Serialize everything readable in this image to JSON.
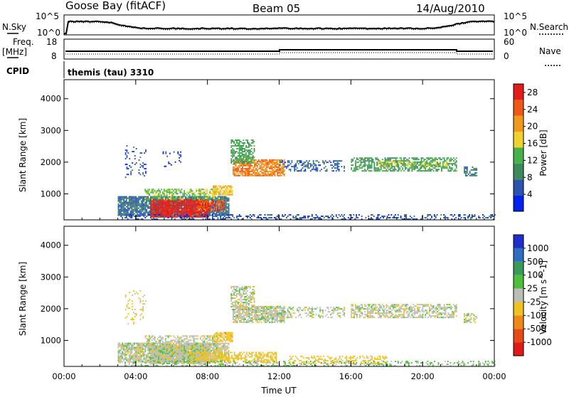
{
  "header": {
    "station": "Goose Bay (fitACF)",
    "beam": "Beam 05",
    "date": "14/Aug/2010"
  },
  "noise_panel": {
    "left_label": "N.Sky",
    "left_ticks": [
      "10^5",
      "10^0"
    ],
    "right_ticks": [
      "10^5",
      "10^0"
    ],
    "right_label": "N.Search"
  },
  "freq_panel": {
    "left_label_1": "Freq.",
    "left_label_2": "[MHz]",
    "left_ticks": [
      "18",
      "8"
    ],
    "right_ticks": [
      "60",
      "0"
    ],
    "right_label": "Nave"
  },
  "cpid": {
    "label": "CPID",
    "program": "themis (tau) 3310"
  },
  "chart_data": [
    {
      "type": "heatmap",
      "panel": "power",
      "ylabel": "Slant Range [km]",
      "xlabel": "",
      "x_range_hours": [
        0,
        24
      ],
      "ylim": [
        180,
        4600
      ],
      "yticks": [
        "4000",
        "3000",
        "2000",
        "1000"
      ],
      "colorbar_label": "Power [dB]",
      "colorbar_ticks": [
        "28",
        "24",
        "20",
        "16",
        "12",
        "8",
        "4"
      ],
      "colorbar_range": [
        0,
        30
      ],
      "colors": [
        "#0022ee",
        "#2a54b0",
        "#3f8a5a",
        "#46b34a",
        "#f0d22c",
        "#ef9a1a",
        "#ee5a15",
        "#e21d17"
      ],
      "regions": [
        {
          "t0": 3.0,
          "t1": 9.2,
          "r0": 300,
          "r1": 900,
          "value": 7,
          "density": 0.85
        },
        {
          "t0": 4.8,
          "t1": 8.1,
          "r0": 250,
          "r1": 800,
          "value": 29,
          "density": 0.95
        },
        {
          "t0": 7.4,
          "t1": 8.9,
          "r0": 450,
          "r1": 800,
          "value": 25,
          "density": 0.8
        },
        {
          "t0": 4.5,
          "t1": 8.6,
          "r0": 800,
          "r1": 1150,
          "value": 14,
          "density": 0.6
        },
        {
          "t0": 8.3,
          "t1": 9.4,
          "r0": 950,
          "r1": 1250,
          "value": 19,
          "density": 0.75
        },
        {
          "t0": 9.4,
          "t1": 12.3,
          "r0": 1550,
          "r1": 2050,
          "value": 22,
          "density": 0.8
        },
        {
          "t0": 9.3,
          "t1": 10.6,
          "r0": 1950,
          "r1": 2700,
          "value": 12,
          "density": 0.6
        },
        {
          "t0": 12.0,
          "t1": 15.6,
          "r0": 1700,
          "r1": 2050,
          "value": 6,
          "density": 0.35
        },
        {
          "t0": 16.0,
          "t1": 21.9,
          "r0": 1700,
          "r1": 2150,
          "value": 11,
          "density": 0.6
        },
        {
          "t0": 17.5,
          "t1": 21.5,
          "r0": 1850,
          "r1": 2000,
          "value": 16,
          "density": 0.5
        },
        {
          "t0": 22.3,
          "t1": 23.0,
          "r0": 1550,
          "r1": 1850,
          "value": 8,
          "density": 0.6
        },
        {
          "t0": 3.0,
          "t1": 24.0,
          "r0": 180,
          "r1": 320,
          "value": 5,
          "density": 0.35
        },
        {
          "t0": 3.4,
          "t1": 4.6,
          "r0": 1500,
          "r1": 2550,
          "value": 5,
          "density": 0.15
        },
        {
          "t0": 5.5,
          "t1": 6.5,
          "r0": 1800,
          "r1": 2300,
          "value": 4,
          "density": 0.1
        }
      ]
    },
    {
      "type": "heatmap",
      "panel": "velocity",
      "ylabel": "Slant Range [km]",
      "xlabel": "Time UT",
      "x_range_hours": [
        0,
        24
      ],
      "x_tick_labels": [
        "00:00",
        "04:00",
        "08:00",
        "12:00",
        "16:00",
        "20:00",
        "00:00"
      ],
      "ylim": [
        180,
        4600
      ],
      "yticks": [
        "4000",
        "3000",
        "2000",
        "1000"
      ],
      "colorbar_label": "Velocity [m s^-1]",
      "colorbar_ticks": [
        "1000",
        "500",
        "100",
        "25",
        "-25",
        "-100",
        "-500",
        "-1000"
      ],
      "colors": [
        "#1f2fcc",
        "#2e6ec0",
        "#3a9a5a",
        "#4dbf3a",
        "#bdbdb8",
        "#f0c21e",
        "#ef8a18",
        "#e84a16",
        "#e01a17"
      ],
      "regions": [
        {
          "t0": 3.0,
          "t1": 9.2,
          "r0": 300,
          "r1": 900,
          "value": 0,
          "density": 0.85
        },
        {
          "t0": 4.8,
          "t1": 8.1,
          "r0": 250,
          "r1": 800,
          "value": 0,
          "density": 0.9
        },
        {
          "t0": 7.0,
          "t1": 11.8,
          "r0": 280,
          "r1": 600,
          "value": -60,
          "density": 0.6
        },
        {
          "t0": 4.5,
          "t1": 8.6,
          "r0": 800,
          "r1": 1150,
          "value": 0,
          "density": 0.55
        },
        {
          "t0": 8.3,
          "t1": 9.4,
          "r0": 950,
          "r1": 1250,
          "value": -70,
          "density": 0.75
        },
        {
          "t0": 9.4,
          "t1": 12.3,
          "r0": 1550,
          "r1": 2050,
          "value": 0,
          "density": 0.8
        },
        {
          "t0": 9.3,
          "t1": 10.6,
          "r0": 1950,
          "r1": 2700,
          "value": 0,
          "density": 0.6
        },
        {
          "t0": 12.0,
          "t1": 15.6,
          "r0": 1700,
          "r1": 2050,
          "value": 0,
          "density": 0.35
        },
        {
          "t0": 16.0,
          "t1": 21.9,
          "r0": 1700,
          "r1": 2150,
          "value": 0,
          "density": 0.6
        },
        {
          "t0": 22.3,
          "t1": 23.0,
          "r0": 1550,
          "r1": 1850,
          "value": 0,
          "density": 0.6
        },
        {
          "t0": 12.5,
          "t1": 18.0,
          "r0": 250,
          "r1": 500,
          "value": -60,
          "density": 0.4
        },
        {
          "t0": 3.0,
          "t1": 24.0,
          "r0": 180,
          "r1": 320,
          "value": 30,
          "density": 0.3
        },
        {
          "t0": 3.4,
          "t1": 4.6,
          "r0": 1500,
          "r1": 2550,
          "value": -40,
          "density": 0.15
        }
      ]
    }
  ]
}
